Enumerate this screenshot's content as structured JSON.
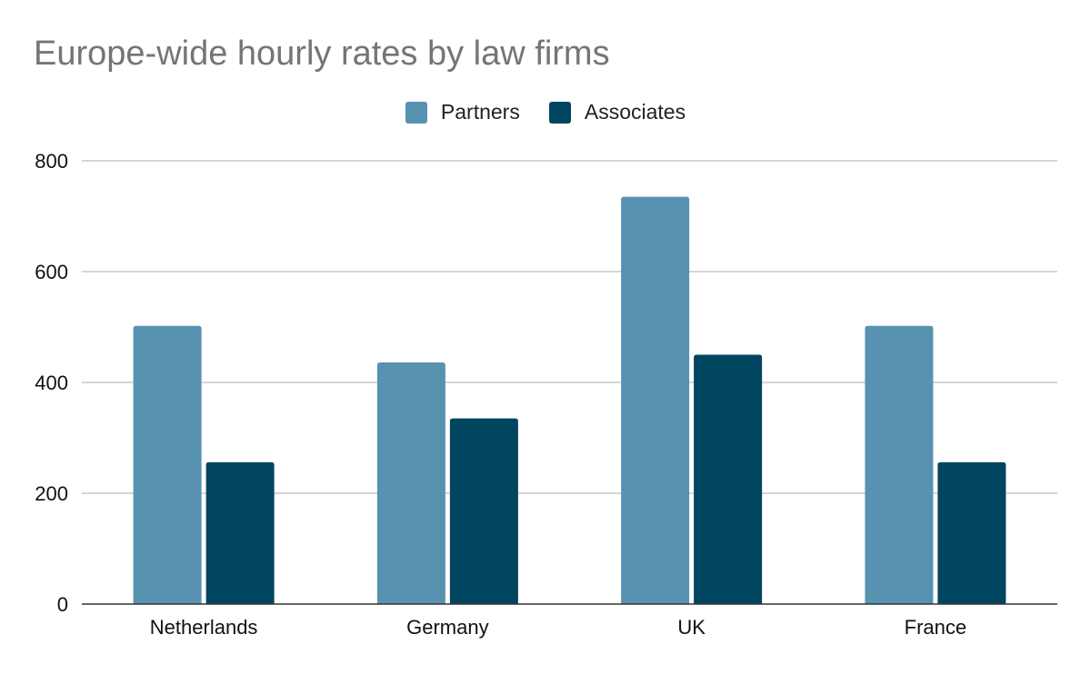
{
  "chart_data": {
    "type": "bar",
    "title": "Europe-wide hourly rates by law firms",
    "xlabel": "",
    "ylabel": "",
    "categories": [
      "Netherlands",
      "Germany",
      "UK",
      "France"
    ],
    "series": [
      {
        "name": "Partners",
        "color": "#5792b0",
        "values": [
          502,
          436,
          735,
          502
        ]
      },
      {
        "name": "Associates",
        "color": "#004560",
        "values": [
          256,
          335,
          450,
          256
        ]
      }
    ],
    "ylim": [
      0,
      800
    ],
    "yticks": [
      0,
      200,
      400,
      600,
      800
    ],
    "grid": true,
    "legend_position": "top-center"
  }
}
